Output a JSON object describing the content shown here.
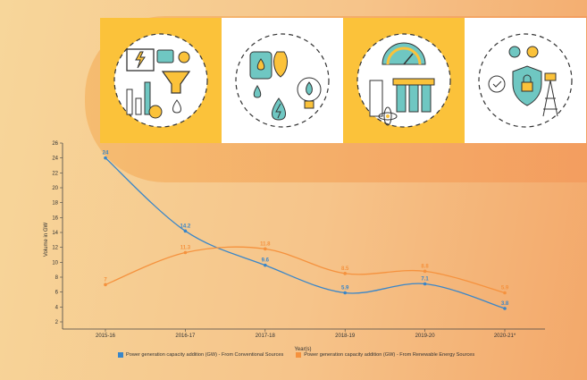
{
  "colors": {
    "conventional": "#3a86c8",
    "renewable": "#f5923e",
    "tile_yellow": "#fbc23a",
    "tile_white": "#ffffff"
  },
  "tiles": [
    {
      "name": "data-analytics-illustration",
      "style": "yellow"
    },
    {
      "name": "energy-resources-illustration",
      "style": "white"
    },
    {
      "name": "power-generation-illustration",
      "style": "yellow"
    },
    {
      "name": "energy-security-illustration",
      "style": "white"
    }
  ],
  "chart_data": {
    "type": "line",
    "title": "",
    "xlabel": "Year(s)",
    "ylabel": "Volume in GW",
    "categories": [
      "2015-16",
      "2016-17",
      "2017-18",
      "2018-19",
      "2019-20",
      "2020-21*"
    ],
    "ylim": [
      2,
      26
    ],
    "yticks": [
      2,
      4,
      6,
      8,
      10,
      12,
      14,
      16,
      18,
      20,
      22,
      24,
      26
    ],
    "grid": false,
    "legend_position": "bottom",
    "series": [
      {
        "name": "Power generation capacity addition (GW) - From Conventional Sources",
        "color": "#3a86c8",
        "values": [
          24,
          14.2,
          9.6,
          5.9,
          7.1,
          3.8
        ],
        "labels": [
          "24",
          "14.2",
          "9.6",
          "5.9",
          "7.1",
          "3.8"
        ]
      },
      {
        "name": "Power generation capacity addition (GW) - From Renewable Energy Sources",
        "color": "#f5923e",
        "values": [
          7,
          11.3,
          11.8,
          8.5,
          8.8,
          5.9
        ],
        "labels": [
          "7",
          "11.3",
          "11.8",
          "8.5",
          "8.8",
          "5.9"
        ]
      }
    ]
  }
}
